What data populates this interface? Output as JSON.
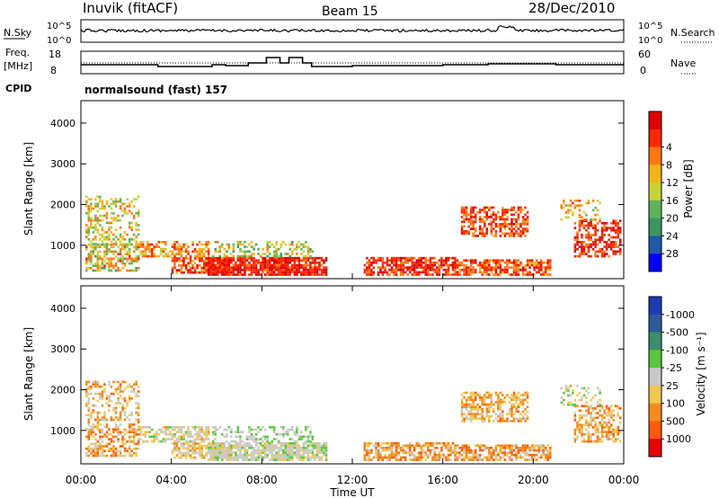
{
  "header": {
    "station": "Inuvik (fitACF)",
    "beam": "Beam 15",
    "date": "28/Dec/2010"
  },
  "top_panel": {
    "left_label": "N.Sky",
    "left_ticks": [
      "10^5",
      "10^0"
    ],
    "right_label": "N.Search",
    "right_ticks": [
      "10^5",
      "10^0"
    ]
  },
  "freq_panel": {
    "left_label_1": "Freq.",
    "left_label_2": "[MHz]",
    "left_ticks": [
      "18",
      "8"
    ],
    "right_label": "Nave",
    "right_ticks": [
      "60",
      "0"
    ],
    "cpid_label": "CPID",
    "cpid_text": "normalsound (fast) 157"
  },
  "chart_data": [
    {
      "type": "heatmap",
      "name_id": "power",
      "ylabel": "Slant Range [km]",
      "ylim": [
        180,
        4550
      ],
      "yticks": [
        "1000",
        "2000",
        "3000",
        "4000"
      ],
      "xlim": [
        0,
        24
      ],
      "colorbar_label": "Power [dB]",
      "colorbar_ticks": [
        "4",
        "8",
        "12",
        "16",
        "20",
        "24",
        "28"
      ],
      "colorbar_colors": [
        "#0000ff",
        "#1e5aa8",
        "#3c9664",
        "#5fb45a",
        "#c8d23c",
        "#f0b41e",
        "#ff7814",
        "#ff2800",
        "#dc0000"
      ]
    },
    {
      "type": "heatmap",
      "name_id": "velocity",
      "ylabel": "Slant Range [km]",
      "ylim": [
        180,
        4550
      ],
      "yticks": [
        "1000",
        "2000",
        "3000",
        "4000"
      ],
      "xlim": [
        0,
        24
      ],
      "colorbar_label": "Velocity [m s⁻¹]",
      "colorbar_ticks": [
        "1000",
        "500",
        "100",
        "25",
        "-25",
        "-100",
        "-500",
        "-1000"
      ],
      "colorbar_colors": [
        "#1e3cb4",
        "#2d5a9b",
        "#3c8c6e",
        "#5ac83c",
        "#c8c8c8",
        "#f0c850",
        "#f08c1e",
        "#ff5a0a",
        "#e60000"
      ]
    }
  ],
  "xaxis": {
    "label": "Time UT",
    "ticks": [
      "00:00",
      "04:00",
      "08:00",
      "12:00",
      "16:00",
      "20:00",
      "00:00"
    ]
  }
}
